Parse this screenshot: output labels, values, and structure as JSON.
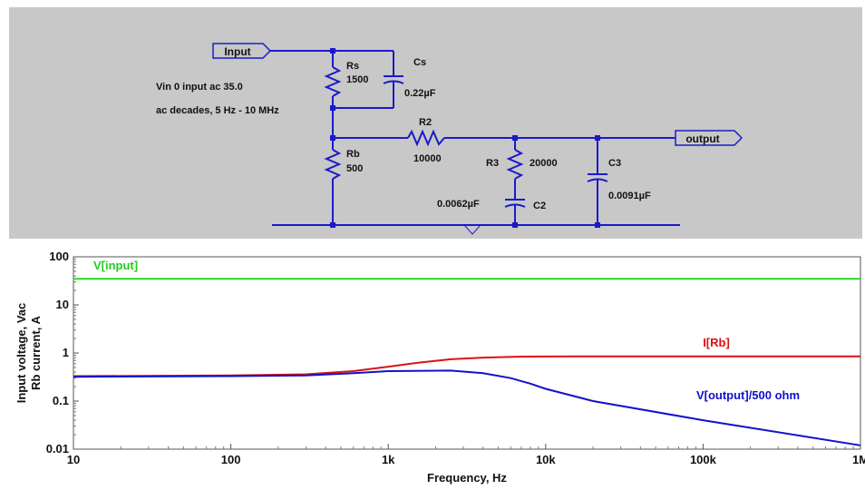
{
  "schematic": {
    "ports": {
      "input": "Input",
      "output": "output"
    },
    "directive_lines": [
      "Vin 0 input ac 35.0",
      "ac decades, 5 Hz - 10 MHz"
    ],
    "components": {
      "rs": {
        "name": "Rs",
        "value": "1500"
      },
      "cs": {
        "name": "Cs",
        "value": "0.22µF"
      },
      "rb": {
        "name": "Rb",
        "value": "500"
      },
      "r2": {
        "name": "R2",
        "value": "10000"
      },
      "r3": {
        "name": "R3",
        "value": "20000"
      },
      "c2": {
        "name": "C2",
        "value": "0.0062µF"
      },
      "c3": {
        "name": "C3",
        "value": "0.0091µF"
      }
    },
    "wire_color": "#1a1acc"
  },
  "plot": {
    "ylabel_lines": [
      "Input voltage, Vac",
      "Rb current, A"
    ],
    "xlabel": "Frequency, Hz",
    "y_ticks": [
      "100",
      "10",
      "1",
      "0.1",
      "0.01"
    ],
    "x_ticks": [
      "10",
      "100",
      "1k",
      "10k",
      "100k",
      "1M"
    ]
  },
  "chart_data": {
    "type": "line",
    "xlabel": "Frequency, Hz",
    "ylabel": "Input voltage, Vac / Rb current, A",
    "x_scale": "log",
    "y_scale": "log",
    "xlim": [
      10,
      1000000
    ],
    "ylim": [
      0.01,
      100
    ],
    "grid": false,
    "series": [
      {
        "name": "V[input]",
        "color": "#22dd22",
        "x": [
          10,
          1000000
        ],
        "y": [
          35,
          35
        ]
      },
      {
        "name": "I[Rb]",
        "color": "#dd1111",
        "x": [
          10,
          100,
          300,
          600,
          1000,
          1500,
          2500,
          4000,
          7000,
          15000,
          100000,
          1000000
        ],
        "y": [
          0.33,
          0.34,
          0.36,
          0.42,
          0.52,
          0.62,
          0.74,
          0.8,
          0.84,
          0.85,
          0.85,
          0.85
        ]
      },
      {
        "name": "V[output]/500 ohm",
        "color": "#1111cc",
        "x": [
          10,
          100,
          300,
          600,
          1000,
          2500,
          4000,
          6000,
          8000,
          10000,
          20000,
          100000,
          1000000
        ],
        "y": [
          0.32,
          0.33,
          0.34,
          0.38,
          0.42,
          0.43,
          0.38,
          0.3,
          0.23,
          0.18,
          0.1,
          0.04,
          0.012
        ]
      }
    ]
  }
}
